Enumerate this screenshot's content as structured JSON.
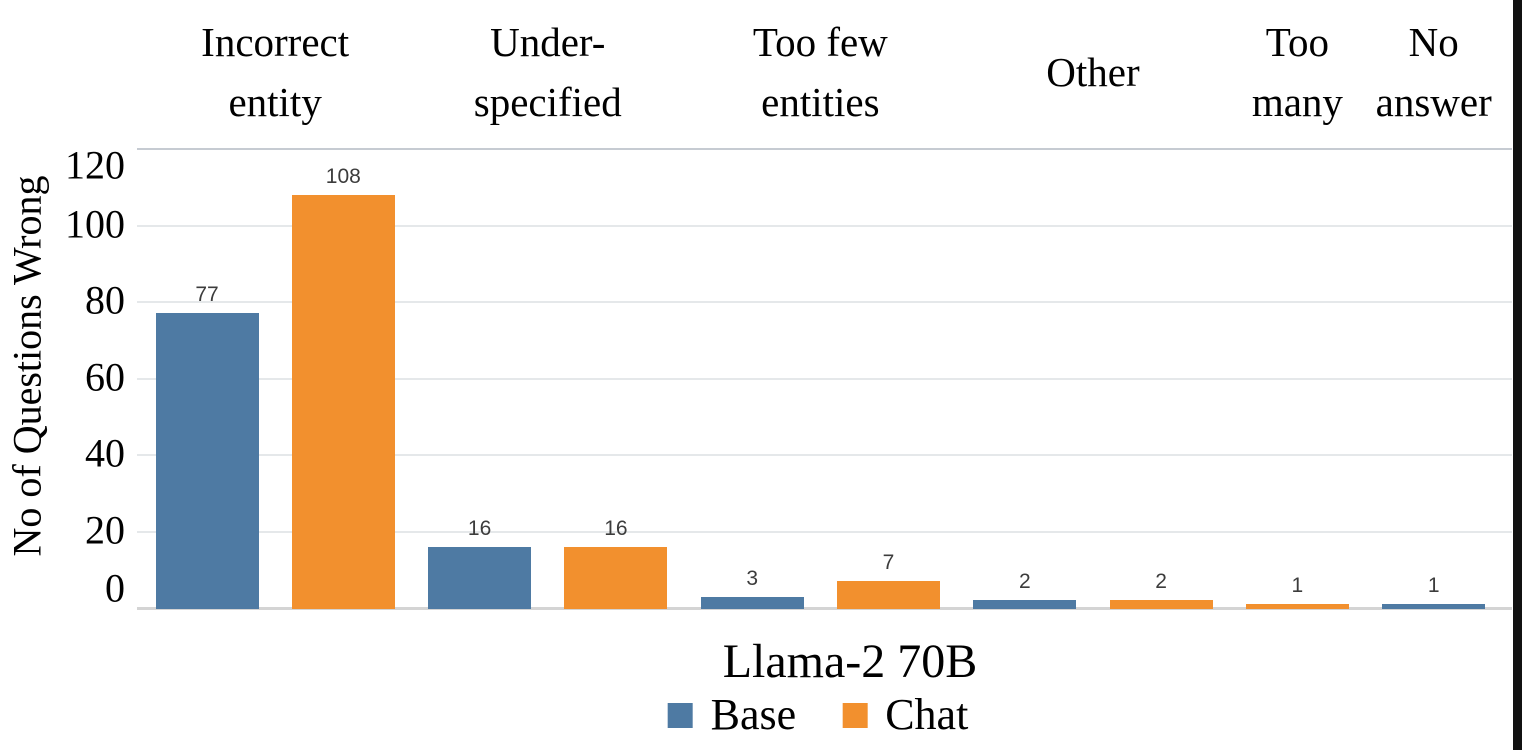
{
  "chart": {
    "accent_blue": "#4E7AA3",
    "accent_orange": "#F2902E"
  },
  "chart_data": {
    "type": "bar",
    "title": "Llama-2 70B",
    "ylabel": "No of Questions Wrong",
    "xlabel": "",
    "categories": [
      "Incorrect entity",
      "Under-specified",
      "Too few entities",
      "Other",
      "Too many",
      "No answer"
    ],
    "category_label_lines": [
      [
        "Incorrect",
        "entity"
      ],
      [
        "Under-",
        "specified"
      ],
      [
        "Too few",
        "entities"
      ],
      [
        "Other"
      ],
      [
        "Too",
        "many"
      ],
      [
        "No",
        "answer"
      ]
    ],
    "series": [
      {
        "name": "Base",
        "color": "#4E7AA3",
        "values": [
          77,
          16,
          3,
          2,
          0,
          1
        ]
      },
      {
        "name": "Chat",
        "color": "#F2902E",
        "values": [
          108,
          16,
          7,
          2,
          1,
          0
        ]
      }
    ],
    "data_labels": {
      "Base": [
        77,
        16,
        3,
        2,
        null,
        1
      ],
      "Chat": [
        108,
        16,
        7,
        2,
        1,
        null
      ]
    },
    "ylim": [
      0,
      120
    ],
    "yticks": [
      0,
      20,
      40,
      60,
      80,
      100,
      120
    ],
    "grid": "horizontal",
    "legend_position": "bottom"
  }
}
